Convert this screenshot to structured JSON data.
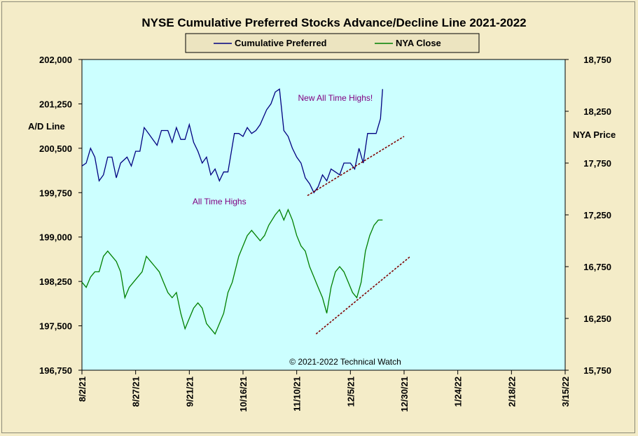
{
  "chart_data": {
    "type": "line",
    "title": "NYSE Cumulative  Preferred Stocks Advance/Decline  Line 2021-2022",
    "ylabel_left": "A/D Line",
    "ylabel_right": "NYA Price",
    "y_left": {
      "min": 196750,
      "max": 202000,
      "ticks": [
        "196,750",
        "197,500",
        "198,250",
        "199,000",
        "199,750",
        "200,500",
        "201,250",
        "202,000"
      ]
    },
    "y_right": {
      "min": 15750,
      "max": 18750,
      "ticks": [
        "15,750",
        "16,250",
        "16,750",
        "17,250",
        "17,750",
        "18,250",
        "18,750"
      ]
    },
    "x_ticks": [
      "8/2/21",
      "8/27/21",
      "9/21/21",
      "10/16/21",
      "11/10/21",
      "12/5/21",
      "12/30/21",
      "1/24/22",
      "2/18/22",
      "3/15/22"
    ],
    "x_range_days": [
      0,
      225
    ],
    "grid": false,
    "legend_position": "top-center",
    "series": [
      {
        "name": "Cumulative Preferred",
        "axis": "left",
        "color": "#000080",
        "points": [
          [
            0,
            200200
          ],
          [
            2,
            200250
          ],
          [
            4,
            200500
          ],
          [
            6,
            200350
          ],
          [
            8,
            199950
          ],
          [
            10,
            200050
          ],
          [
            12,
            200350
          ],
          [
            14,
            200350
          ],
          [
            16,
            200000
          ],
          [
            18,
            200250
          ],
          [
            21,
            200350
          ],
          [
            23,
            200200
          ],
          [
            25,
            200450
          ],
          [
            27,
            200450
          ],
          [
            29,
            200850
          ],
          [
            31,
            200750
          ],
          [
            33,
            200650
          ],
          [
            35,
            200550
          ],
          [
            37,
            200800
          ],
          [
            40,
            200800
          ],
          [
            42,
            200600
          ],
          [
            44,
            200850
          ],
          [
            46,
            200650
          ],
          [
            48,
            200650
          ],
          [
            50,
            200900
          ],
          [
            52,
            200600
          ],
          [
            54,
            200450
          ],
          [
            56,
            200250
          ],
          [
            58,
            200350
          ],
          [
            60,
            200050
          ],
          [
            62,
            200150
          ],
          [
            64,
            199950
          ],
          [
            66,
            200100
          ],
          [
            68,
            200100
          ],
          [
            71,
            200750
          ],
          [
            73,
            200750
          ],
          [
            75,
            200700
          ],
          [
            77,
            200850
          ],
          [
            79,
            200750
          ],
          [
            81,
            200800
          ],
          [
            83,
            200900
          ],
          [
            86,
            201150
          ],
          [
            88,
            201250
          ],
          [
            90,
            201450
          ],
          [
            92,
            201500
          ],
          [
            94,
            200800
          ],
          [
            96,
            200700
          ],
          [
            98,
            200500
          ],
          [
            100,
            200350
          ],
          [
            102,
            200250
          ],
          [
            104,
            200000
          ],
          [
            106,
            199900
          ],
          [
            108,
            199750
          ],
          [
            110,
            199850
          ],
          [
            112,
            200050
          ],
          [
            114,
            199950
          ],
          [
            116,
            200150
          ],
          [
            118,
            200100
          ],
          [
            120,
            200050
          ],
          [
            122,
            200250
          ],
          [
            125,
            200250
          ],
          [
            127,
            200150
          ],
          [
            129,
            200500
          ],
          [
            131,
            200250
          ],
          [
            133,
            200750
          ],
          [
            137,
            200750
          ],
          [
            139,
            201000
          ],
          [
            140,
            201500
          ]
        ]
      },
      {
        "name": "NYA Close",
        "axis": "right",
        "color": "#008000",
        "points": [
          [
            0,
            16600
          ],
          [
            2,
            16550
          ],
          [
            4,
            16650
          ],
          [
            6,
            16700
          ],
          [
            8,
            16700
          ],
          [
            10,
            16850
          ],
          [
            12,
            16900
          ],
          [
            14,
            16850
          ],
          [
            16,
            16800
          ],
          [
            18,
            16700
          ],
          [
            20,
            16450
          ],
          [
            22,
            16550
          ],
          [
            24,
            16600
          ],
          [
            26,
            16650
          ],
          [
            28,
            16700
          ],
          [
            30,
            16850
          ],
          [
            32,
            16800
          ],
          [
            34,
            16750
          ],
          [
            36,
            16700
          ],
          [
            38,
            16600
          ],
          [
            40,
            16500
          ],
          [
            42,
            16450
          ],
          [
            44,
            16500
          ],
          [
            46,
            16300
          ],
          [
            48,
            16150
          ],
          [
            50,
            16250
          ],
          [
            52,
            16350
          ],
          [
            54,
            16400
          ],
          [
            56,
            16350
          ],
          [
            58,
            16200
          ],
          [
            60,
            16150
          ],
          [
            62,
            16100
          ],
          [
            64,
            16200
          ],
          [
            66,
            16300
          ],
          [
            68,
            16500
          ],
          [
            70,
            16600
          ],
          [
            73,
            16850
          ],
          [
            75,
            16950
          ],
          [
            77,
            17050
          ],
          [
            79,
            17100
          ],
          [
            81,
            17050
          ],
          [
            83,
            17000
          ],
          [
            85,
            17050
          ],
          [
            87,
            17150
          ],
          [
            90,
            17250
          ],
          [
            92,
            17300
          ],
          [
            94,
            17200
          ],
          [
            96,
            17300
          ],
          [
            98,
            17200
          ],
          [
            100,
            17050
          ],
          [
            102,
            16950
          ],
          [
            104,
            16900
          ],
          [
            106,
            16750
          ],
          [
            108,
            16650
          ],
          [
            110,
            16550
          ],
          [
            112,
            16450
          ],
          [
            114,
            16300
          ],
          [
            116,
            16550
          ],
          [
            118,
            16700
          ],
          [
            120,
            16750
          ],
          [
            122,
            16700
          ],
          [
            124,
            16600
          ],
          [
            126,
            16500
          ],
          [
            128,
            16450
          ],
          [
            130,
            16600
          ],
          [
            132,
            16900
          ],
          [
            134,
            17050
          ],
          [
            136,
            17150
          ],
          [
            138,
            17200
          ],
          [
            140,
            17200
          ]
        ]
      },
      {
        "name": "",
        "axis": "left",
        "color": "#800000",
        "dashed": true,
        "points": [
          [
            105,
            199700
          ],
          [
            150,
            200700
          ]
        ]
      },
      {
        "name": "",
        "axis": "right",
        "color": "#800000",
        "dashed": true,
        "points": [
          [
            109,
            16100
          ],
          [
            153,
            16850
          ]
        ]
      }
    ],
    "annotations": [
      {
        "text": "New All Time Highs!",
        "x": 118,
        "y_right": 18350
      },
      {
        "text": "All Time Highs",
        "x": 64,
        "y_right": 17350
      }
    ],
    "copyright": "© 2021-2022  Technical  Watch"
  }
}
